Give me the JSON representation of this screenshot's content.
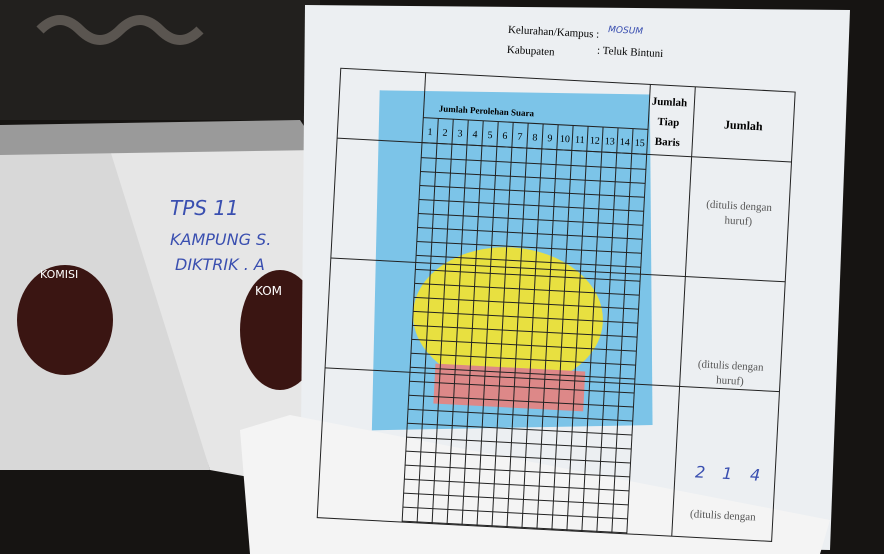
{
  "header": {
    "kelurahan_label": "Kelurahan/Kampus :",
    "kelurahan_value": "MOSUM",
    "kabupaten_label": "Kabupaten",
    "kabupaten_value": ": Teluk Bintuni"
  },
  "table": {
    "title": "Jumlah Perolehan Suara",
    "columns": [
      "1",
      "2",
      "3",
      "4",
      "5",
      "6",
      "7",
      "8",
      "9",
      "10",
      "11",
      "12",
      "13",
      "14",
      "15"
    ],
    "row_total_header": [
      "Jumlah",
      "Tiap",
      "Baris"
    ],
    "total_header": "Jumlah",
    "notes": [
      "(ditulis dengan",
      "huruf)",
      "(ditulis dengan",
      "huruf)",
      "(ditulis dengan"
    ]
  },
  "handwriting": {
    "box": [
      "TPS 11",
      "KAMPUNG S.",
      "DIKTRIK . A"
    ],
    "tally": [
      "2",
      "1",
      "4"
    ]
  },
  "box_labels": [
    "KOMISI",
    "KOM"
  ]
}
